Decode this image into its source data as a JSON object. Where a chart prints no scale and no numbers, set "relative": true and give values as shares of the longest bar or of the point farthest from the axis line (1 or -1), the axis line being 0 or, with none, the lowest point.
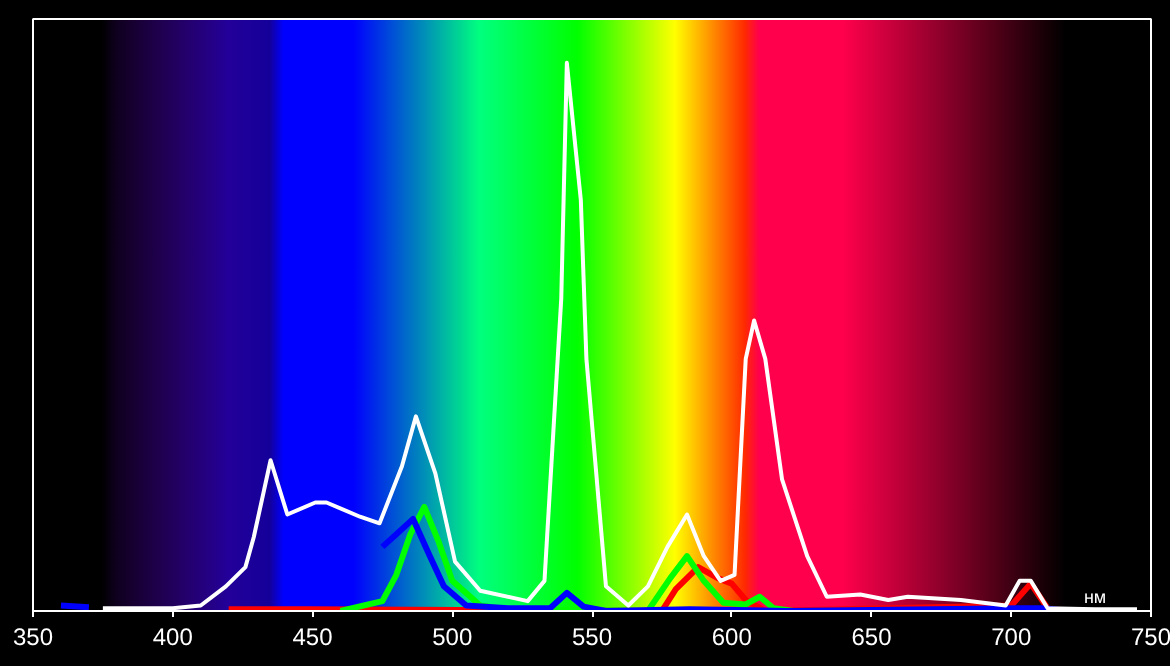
{
  "chart_data": {
    "type": "line",
    "xlabel": "нм",
    "relative": true,
    "xlim": [
      350,
      750
    ],
    "xticks": [
      350,
      400,
      450,
      500,
      550,
      600,
      650,
      700,
      750
    ],
    "grid": false,
    "marker": "none",
    "line_style": "solid",
    "series": [
      {
        "color": "#ffffff",
        "x": [
          375,
          400,
          410,
          419,
          426,
          429,
          435,
          441,
          451,
          455,
          467,
          474,
          482,
          487,
          494,
          501,
          510,
          527,
          533,
          539,
          541,
          546,
          548,
          555,
          563,
          570,
          577,
          584,
          590,
          596,
          601,
          605,
          608,
          612,
          618,
          627,
          634,
          646,
          656,
          663,
          682,
          698,
          703,
          707,
          713,
          730,
          745
        ],
        "values": [
          0.005,
          0.005,
          0.01,
          0.045,
          0.08,
          0.135,
          0.275,
          0.176,
          0.198,
          0.198,
          0.172,
          0.16,
          0.264,
          0.355,
          0.25,
          0.09,
          0.037,
          0.018,
          0.055,
          0.57,
          1.0,
          0.75,
          0.46,
          0.045,
          0.01,
          0.045,
          0.117,
          0.176,
          0.1,
          0.055,
          0.066,
          0.46,
          0.53,
          0.46,
          0.24,
          0.1,
          0.026,
          0.03,
          0.02,
          0.026,
          0.02,
          0.01,
          0.055,
          0.055,
          0.005,
          0.003,
          0.003
        ]
      },
      {
        "color": "#0000ff",
        "x": [
          360,
          370
        ],
        "values": [
          0.01,
          0.007
        ]
      },
      {
        "color": "#0000ff",
        "x": [
          475,
          480,
          486,
          492,
          497,
          505,
          520,
          535,
          541,
          547,
          555,
          585,
          620,
          705,
          712,
          720
        ],
        "values": [
          0.117,
          0.14,
          0.168,
          0.1,
          0.045,
          0.01,
          0.005,
          0.005,
          0.033,
          0.008,
          0.0,
          0.003,
          0.0,
          0.005,
          0.005,
          0.0
        ]
      },
      {
        "color": "#00ff00",
        "x": [
          460,
          475,
          480,
          485,
          490,
          495,
          500,
          510,
          520,
          570,
          578,
          584,
          590,
          597,
          605,
          610,
          615,
          622
        ],
        "values": [
          0.0,
          0.018,
          0.066,
          0.14,
          0.19,
          0.128,
          0.055,
          0.01,
          0.003,
          0.0,
          0.06,
          0.1,
          0.055,
          0.015,
          0.012,
          0.026,
          0.005,
          0.0
        ]
      },
      {
        "color": "#ff0000",
        "x": [
          420,
          448,
          575,
          580,
          588,
          595,
          600,
          605,
          612,
          700,
          707,
          713
        ],
        "values": [
          0.003,
          0.003,
          0.0,
          0.04,
          0.08,
          0.06,
          0.05,
          0.02,
          0.0,
          0.01,
          0.05,
          0.005
        ]
      }
    ]
  }
}
